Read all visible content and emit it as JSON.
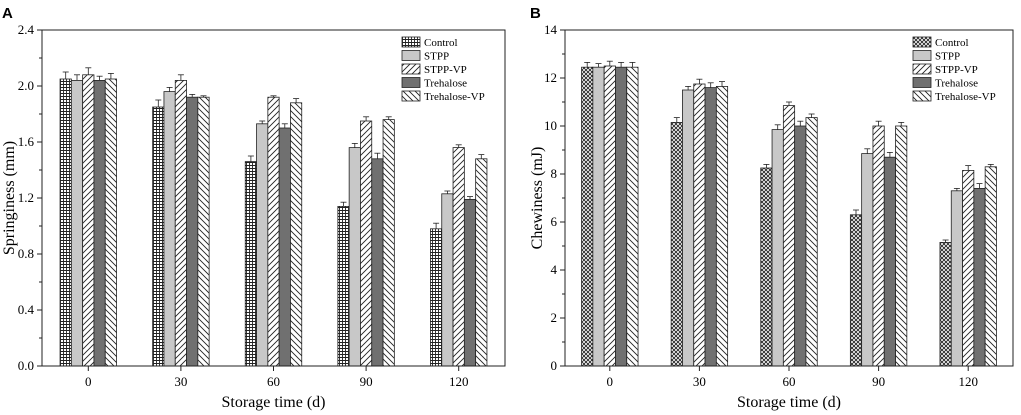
{
  "chart_data": [
    {
      "panel": "A",
      "type": "bar",
      "title": "",
      "xlabel": "Storage time (d)",
      "ylabel": "Springiness (mm)",
      "ylim": [
        0.0,
        2.4
      ],
      "yticks": [
        "0.0",
        "0.4",
        "0.8",
        "1.2",
        "1.6",
        "2.0",
        "2.4"
      ],
      "categories": [
        "0",
        "30",
        "60",
        "90",
        "120"
      ],
      "legend_position": "top-right",
      "series": [
        {
          "name": "Control",
          "values": [
            2.05,
            1.85,
            1.46,
            1.14,
            0.98
          ],
          "errors": [
            0.05,
            0.05,
            0.04,
            0.03,
            0.04
          ]
        },
        {
          "name": "STPP",
          "values": [
            2.04,
            1.96,
            1.73,
            1.56,
            1.23
          ],
          "errors": [
            0.04,
            0.03,
            0.02,
            0.03,
            0.02
          ]
        },
        {
          "name": "STPP-VP",
          "values": [
            2.08,
            2.04,
            1.92,
            1.75,
            1.56
          ],
          "errors": [
            0.05,
            0.04,
            0.01,
            0.03,
            0.02
          ]
        },
        {
          "name": "Trehalose",
          "values": [
            2.04,
            1.92,
            1.7,
            1.48,
            1.19
          ],
          "errors": [
            0.03,
            0.02,
            0.03,
            0.04,
            0.02
          ]
        },
        {
          "name": "Trehalose-VP",
          "values": [
            2.05,
            1.92,
            1.88,
            1.76,
            1.48
          ],
          "errors": [
            0.04,
            0.01,
            0.03,
            0.02,
            0.03
          ]
        }
      ]
    },
    {
      "panel": "B",
      "type": "bar",
      "title": "",
      "xlabel": "Storage time (d)",
      "ylabel": "Chewiness (mJ)",
      "ylim": [
        0,
        14
      ],
      "yticks": [
        "0",
        "2",
        "4",
        "6",
        "8",
        "10",
        "12",
        "14"
      ],
      "categories": [
        "0",
        "30",
        "60",
        "90",
        "120"
      ],
      "legend_position": "top-right",
      "series": [
        {
          "name": "Control",
          "values": [
            12.45,
            10.15,
            8.25,
            6.3,
            5.15
          ],
          "errors": [
            0.2,
            0.2,
            0.15,
            0.2,
            0.1
          ]
        },
        {
          "name": "STPP",
          "values": [
            12.45,
            11.5,
            9.85,
            8.85,
            7.3
          ],
          "errors": [
            0.15,
            0.15,
            0.2,
            0.2,
            0.1
          ]
        },
        {
          "name": "STPP-VP",
          "values": [
            12.5,
            11.75,
            10.85,
            10.0,
            8.15
          ],
          "errors": [
            0.2,
            0.2,
            0.15,
            0.2,
            0.2
          ]
        },
        {
          "name": "Trehalose",
          "values": [
            12.45,
            11.6,
            10.0,
            8.7,
            7.4
          ],
          "errors": [
            0.2,
            0.2,
            0.2,
            0.2,
            0.2
          ]
        },
        {
          "name": "Trehalose-VP",
          "values": [
            12.45,
            11.65,
            10.35,
            10.0,
            8.3
          ],
          "errors": [
            0.2,
            0.2,
            0.15,
            0.15,
            0.1
          ]
        }
      ]
    }
  ]
}
